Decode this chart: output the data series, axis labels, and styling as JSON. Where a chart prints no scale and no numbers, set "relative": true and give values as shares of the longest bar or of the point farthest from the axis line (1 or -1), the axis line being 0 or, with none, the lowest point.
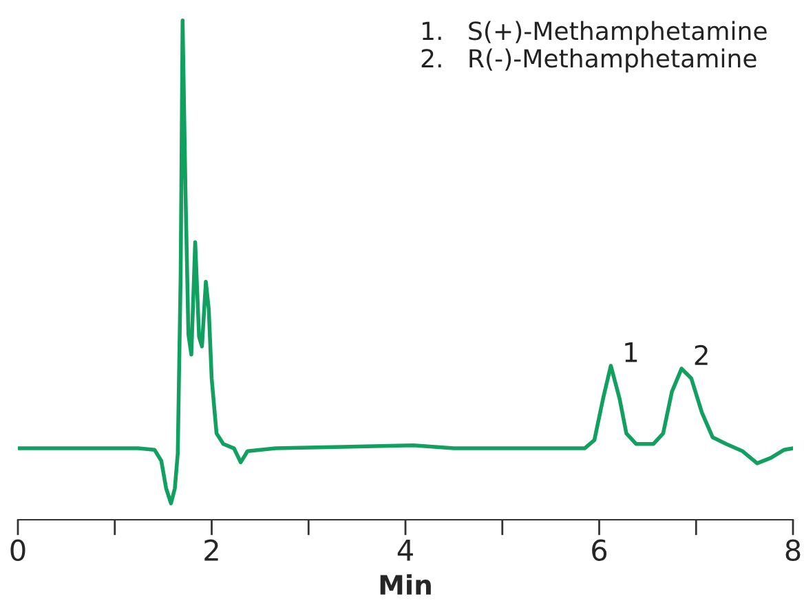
{
  "chart_data": {
    "type": "line",
    "relative": true,
    "xlabel": "Min",
    "xlim": [
      0,
      8
    ],
    "xticks": [
      0,
      {
        "value": 1,
        "label": null
      },
      2,
      {
        "value": 3,
        "label": null
      },
      4,
      {
        "value": 5,
        "label": null
      },
      6,
      {
        "value": 7,
        "label": null
      },
      8
    ],
    "x": [
      0,
      0.67,
      1.24,
      1.41,
      1.48,
      1.53,
      1.58,
      1.62,
      1.65,
      1.68,
      1.7,
      1.73,
      1.76,
      1.79,
      1.83,
      1.87,
      1.9,
      1.94,
      1.97,
      2.0,
      2.05,
      2.12,
      2.23,
      2.3,
      2.37,
      2.66,
      4.08,
      4.5,
      5.85,
      5.95,
      6.04,
      6.12,
      6.21,
      6.28,
      6.38,
      6.56,
      6.66,
      6.75,
      6.85,
      6.95,
      7.06,
      7.17,
      7.31,
      7.48,
      7.63,
      7.77,
      7.91,
      8.0
    ],
    "series": [
      {
        "color": "#12a060",
        "values": [
          0.114,
          0.114,
          0.114,
          0.111,
          0.088,
          0.031,
          0,
          0.031,
          0.103,
          0.473,
          1,
          0.644,
          0.35,
          0.308,
          0.541,
          0.345,
          0.325,
          0.459,
          0.402,
          0.259,
          0.145,
          0.123,
          0.114,
          0.085,
          0.108,
          0.114,
          0.12,
          0.114,
          0.114,
          0.131,
          0.217,
          0.285,
          0.217,
          0.145,
          0.123,
          0.123,
          0.145,
          0.231,
          0.279,
          0.259,
          0.188,
          0.137,
          0.123,
          0.108,
          0.083,
          0.094,
          0.111,
          0.114
        ]
      }
    ],
    "annotations": [
      "1.   S(+)-Methamphetamine",
      "2.   R(-)-Methamphetamine",
      {
        "text": "1",
        "x": 6.12,
        "y": 0.285
      },
      {
        "text": "2",
        "x": 6.85,
        "y": 0.279
      }
    ],
    "grid": false
  }
}
